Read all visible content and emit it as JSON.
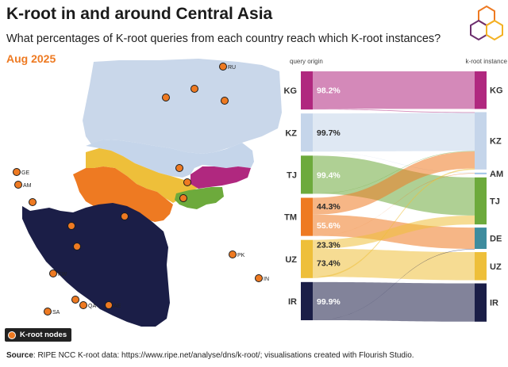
{
  "header": {
    "title": "K-root in and around Central Asia",
    "subtitle": "What percentages of K-root queries from each country reach which K-root instances?",
    "date": "Aug 2025"
  },
  "map": {
    "node_labels": [
      "RU",
      "GE",
      "AM",
      "PK",
      "IN",
      "KW",
      "QA",
      "AE",
      "SA"
    ],
    "legend_label": "K-root nodes"
  },
  "chart_data": {
    "type": "sankey",
    "left_header": "query origin",
    "right_header": "k-root instance",
    "sources": [
      "KG",
      "KZ",
      "TJ",
      "TM",
      "UZ",
      "IR"
    ],
    "targets": [
      "KG",
      "KZ",
      "AM",
      "TJ",
      "DE",
      "UZ",
      "IR"
    ],
    "printed_percentages": [
      {
        "source": "KG",
        "label": "98.2%"
      },
      {
        "source": "KZ",
        "label": "99.7%"
      },
      {
        "source": "TJ",
        "label": "99.4%"
      },
      {
        "source": "TM",
        "label": "44.3%"
      },
      {
        "source": "TM",
        "label": "55.6%"
      },
      {
        "source": "UZ",
        "label": "23.3%"
      },
      {
        "source": "UZ",
        "label": "73.4%"
      },
      {
        "source": "IR",
        "label": "99.9%"
      }
    ],
    "flows": [
      {
        "source": "KG",
        "target": "KG",
        "value": 98.2
      },
      {
        "source": "KG",
        "target": "KZ",
        "value": 1.8
      },
      {
        "source": "KZ",
        "target": "KZ",
        "value": 99.7
      },
      {
        "source": "KZ",
        "target": "AM",
        "value": 0.3
      },
      {
        "source": "TJ",
        "target": "TJ",
        "value": 99.4
      },
      {
        "source": "TJ",
        "target": "KZ",
        "value": 0.6
      },
      {
        "source": "TM",
        "target": "KZ",
        "value": 44.3
      },
      {
        "source": "TM",
        "target": "DE",
        "value": 55.6
      },
      {
        "source": "TM",
        "target": "AM",
        "value": 0.1
      },
      {
        "source": "UZ",
        "target": "TJ",
        "value": 23.3
      },
      {
        "source": "UZ",
        "target": "UZ",
        "value": 73.4
      },
      {
        "source": "UZ",
        "target": "KZ",
        "value": 3.3
      },
      {
        "source": "IR",
        "target": "IR",
        "value": 99.9
      },
      {
        "source": "IR",
        "target": "DE",
        "value": 0.1
      }
    ],
    "colors": {
      "KG": "#b0287f",
      "KZ": "#c5d5ea",
      "TJ": "#6daa3c",
      "TM": "#ee7a22",
      "UZ": "#eebf3a",
      "IR": "#1b1e47",
      "AM": "#9ec3e6",
      "DE": "#3e8c9e"
    }
  },
  "footer": {
    "source_label": "Source",
    "source_text": ": RIPE NCC K-root data: https://www.ripe.net/analyse/dns/k-root/; visualisations created with Flourish Studio."
  }
}
